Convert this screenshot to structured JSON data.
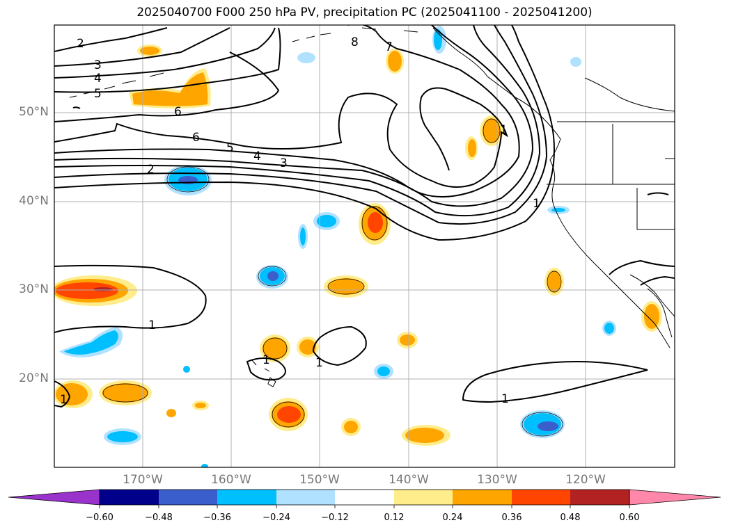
{
  "title": "2025040700 F000 250 hPa PV, precipitation PC (2025041100 - 2025041200)",
  "lat_labels": [
    "50°N",
    "40°N",
    "30°N",
    "20°N"
  ],
  "lon_labels": [
    "170°W",
    "160°W",
    "150°W",
    "140°W",
    "130°W",
    "120°W"
  ],
  "pv_contour_labels": [
    "2",
    "3",
    "4",
    "5",
    "6",
    "2",
    "3",
    "4",
    "5",
    "6",
    "7",
    "8",
    "1",
    "1",
    "1",
    "1",
    "1",
    "1",
    "1"
  ],
  "colorbar": {
    "tick_labels": [
      "−0.60",
      "−0.48",
      "−0.36",
      "−0.24",
      "−0.12",
      "0.12",
      "0.24",
      "0.36",
      "0.48",
      "0.60"
    ],
    "colors": [
      "#9933cc",
      "#00008b",
      "#3a5fcd",
      "#00bfff",
      "#b0e2ff",
      "#ffffff",
      "#ffec8b",
      "#ffa500",
      "#ff4500",
      "#b22222",
      "#ff88aa"
    ]
  }
}
